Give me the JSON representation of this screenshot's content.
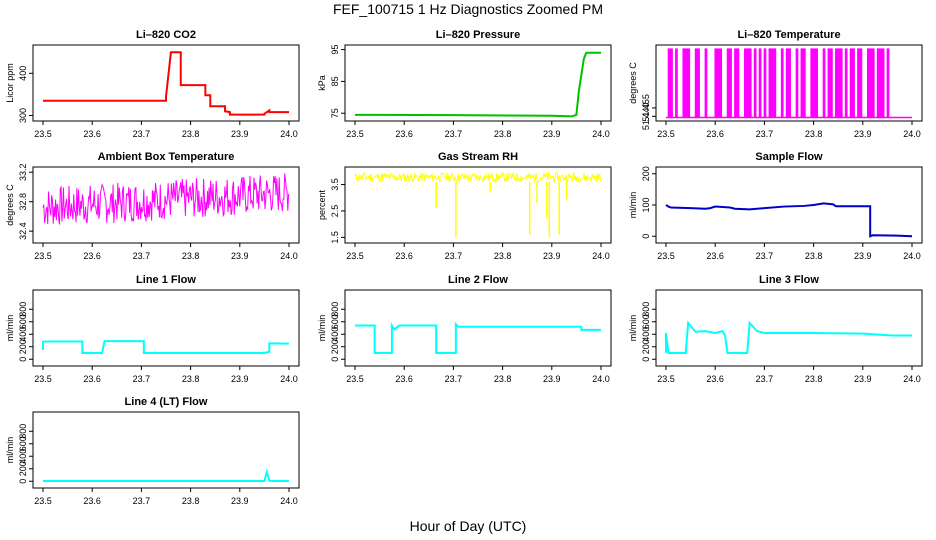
{
  "title": "FEF_100715  1 Hz Diagnostics Zoomed PM",
  "xlabel": "Hour of Day (UTC)",
  "chart_data": [
    {
      "type": "line",
      "title": "Li–820 CO2",
      "ylabel": "Licor ppm",
      "color": "#ff0000",
      "xlim": [
        23.5,
        24.0
      ],
      "ylim": [
        294,
        460
      ],
      "xticks": [
        "23.5",
        "23.6",
        "23.7",
        "23.8",
        "23.9",
        "24.0"
      ],
      "yticks": [
        "300",
        "400"
      ],
      "series": [
        {
          "x": [
            23.5,
            23.75,
            23.75,
            23.76,
            23.77,
            23.78,
            23.78,
            23.83,
            23.83,
            23.84,
            23.84,
            23.87,
            23.87,
            23.88,
            23.88,
            23.95,
            23.95,
            23.96,
            23.96,
            24.0
          ],
          "y": [
            335,
            335,
            345,
            450,
            450,
            450,
            372,
            372,
            348,
            348,
            322,
            322,
            310,
            308,
            302,
            302,
            304,
            312,
            308,
            308
          ]
        }
      ]
    },
    {
      "type": "line",
      "title": "Li–820 Pressure",
      "ylabel": "kPa",
      "color": "#00c000",
      "xlim": [
        23.5,
        24.0
      ],
      "ylim": [
        73.5,
        95.5
      ],
      "xticks": [
        "23.5",
        "23.6",
        "23.7",
        "23.8",
        "23.9",
        "24.0"
      ],
      "yticks": [
        "75",
        "85",
        "95"
      ],
      "series": [
        {
          "x": [
            23.5,
            23.7,
            23.9,
            23.94,
            23.95,
            23.955,
            23.96,
            23.965,
            23.97,
            24.0
          ],
          "y": [
            74.5,
            74.4,
            74.2,
            74.0,
            74.5,
            82,
            87,
            92,
            94,
            94
          ]
        }
      ]
    },
    {
      "type": "line",
      "title": "Li–820 Temperature",
      "ylabel": "degrees C",
      "color": "#ff00ff",
      "xlim": [
        23.5,
        24.0
      ],
      "ylim": [
        51.437,
        51.562
      ],
      "xticks": [
        "23.5",
        "23.6",
        "23.7",
        "23.8",
        "23.9",
        "24.0"
      ],
      "yticks": [
        "51.440",
        "51.455"
      ],
      "switch_x": [
        23.505,
        23.51,
        23.52,
        23.535,
        23.54,
        23.545,
        23.56,
        23.565,
        23.58,
        23.6,
        23.605,
        23.61,
        23.625,
        23.63,
        23.64,
        23.645,
        23.66,
        23.665,
        23.67,
        23.68,
        23.69,
        23.7,
        23.71,
        23.715,
        23.72,
        23.735,
        23.745,
        23.75,
        23.765,
        23.775,
        23.78,
        23.795,
        23.8,
        23.805,
        23.82,
        23.83,
        23.835,
        23.845,
        23.85,
        23.855,
        23.865,
        23.875,
        23.88,
        23.89,
        23.895,
        23.91,
        23.915,
        23.92,
        23.93,
        23.935,
        23.94,
        23.95
      ],
      "low_value": 51.438,
      "high_value": 51.56
    },
    {
      "type": "line",
      "title": "Ambient Box Temperature",
      "ylabel": "degrees C",
      "color": "#ff00ff",
      "xlim": [
        23.5,
        24.0
      ],
      "ylim": [
        32.28,
        33.23
      ],
      "xticks": [
        "23.5",
        "23.6",
        "23.7",
        "23.8",
        "23.9",
        "24.0"
      ],
      "yticks": [
        "32.4",
        "32.8",
        "33.2"
      ],
      "noise": {
        "seed": 7,
        "start": [
          32.45,
          33.0
        ],
        "end": [
          32.65,
          33.2
        ],
        "step": 0.0016
      }
    },
    {
      "type": "line",
      "title": "Gas Stream RH",
      "ylabel": "percent",
      "color": "#ffff00",
      "xlim": [
        23.5,
        24.0
      ],
      "ylim": [
        1.4,
        4.05
      ],
      "xticks": [
        "23.5",
        "23.6",
        "23.7",
        "23.8",
        "23.9",
        "24.0"
      ],
      "yticks": [
        "1.5",
        "2.5",
        "3.5"
      ],
      "noise": {
        "seed": 11,
        "start": [
          3.6,
          3.95
        ],
        "end": [
          3.6,
          3.95
        ],
        "step": 0.0016
      },
      "dips": [
        {
          "x": 23.665,
          "y": 2.6
        },
        {
          "x": 23.705,
          "y": 1.5
        },
        {
          "x": 23.775,
          "y": 3.2
        },
        {
          "x": 23.855,
          "y": 1.6
        },
        {
          "x": 23.87,
          "y": 2.8
        },
        {
          "x": 23.89,
          "y": 2.2
        },
        {
          "x": 23.895,
          "y": 1.5
        },
        {
          "x": 23.915,
          "y": 1.6
        },
        {
          "x": 23.93,
          "y": 2.9
        }
      ]
    },
    {
      "type": "line",
      "title": "Sample Flow",
      "ylabel": "ml/min",
      "color": "#0000c8",
      "xlim": [
        23.5,
        24.0
      ],
      "ylim": [
        -12,
        212
      ],
      "xticks": [
        "23.5",
        "23.6",
        "23.7",
        "23.8",
        "23.9",
        "24.0"
      ],
      "yticks": [
        "0",
        "100",
        "200"
      ],
      "series": [
        {
          "x": [
            23.5,
            23.505,
            23.51,
            23.55,
            23.58,
            23.59,
            23.6,
            23.63,
            23.64,
            23.67,
            23.7,
            23.74,
            23.78,
            23.8,
            23.82,
            23.84,
            23.845,
            23.9,
            23.915,
            23.915,
            23.92,
            23.97,
            24.0
          ],
          "y": [
            100,
            95,
            92,
            90,
            88,
            90,
            95,
            92,
            88,
            86,
            90,
            95,
            97,
            100,
            105,
            102,
            96,
            96,
            96,
            0,
            3,
            2,
            0
          ]
        }
      ]
    },
    {
      "type": "line",
      "title": "Line 1 Flow",
      "ylabel": "ml/min",
      "color": "#00ffff",
      "xlim": [
        23.5,
        24.0
      ],
      "ylim": [
        -60,
        1060
      ],
      "xticks": [
        "23.5",
        "23.6",
        "23.7",
        "23.8",
        "23.9",
        "24.0"
      ],
      "yticks": [
        "0",
        "200",
        "400",
        "600",
        "800"
      ],
      "series": [
        {
          "x": [
            23.5,
            23.5,
            23.505,
            23.58,
            23.58,
            23.62,
            23.625,
            23.705,
            23.705,
            23.95,
            23.96,
            23.96,
            24.0
          ],
          "y": [
            150,
            280,
            285,
            285,
            100,
            100,
            290,
            290,
            100,
            100,
            120,
            255,
            250
          ]
        }
      ]
    },
    {
      "type": "line",
      "title": "Line 2 Flow",
      "ylabel": "ml/min",
      "color": "#00ffff",
      "xlim": [
        23.5,
        24.0
      ],
      "ylim": [
        -60,
        1060
      ],
      "xticks": [
        "23.5",
        "23.6",
        "23.7",
        "23.8",
        "23.9",
        "24.0"
      ],
      "yticks": [
        "0",
        "200",
        "400",
        "600",
        "800"
      ],
      "series": [
        {
          "x": [
            23.5,
            23.54,
            23.54,
            23.575,
            23.575,
            23.58,
            23.59,
            23.665,
            23.665,
            23.705,
            23.705,
            23.71,
            23.96,
            23.96,
            24.0
          ],
          "y": [
            540,
            540,
            100,
            100,
            540,
            480,
            540,
            540,
            100,
            100,
            560,
            520,
            520,
            470,
            470
          ]
        }
      ]
    },
    {
      "type": "line",
      "title": "Line 3 Flow",
      "ylabel": "ml/min",
      "color": "#00ffff",
      "xlim": [
        23.5,
        24.0
      ],
      "ylim": [
        -60,
        1060
      ],
      "xticks": [
        "23.5",
        "23.6",
        "23.7",
        "23.8",
        "23.9",
        "24.0"
      ],
      "yticks": [
        "0",
        "200",
        "400",
        "600",
        "800"
      ],
      "series": [
        {
          "x": [
            23.5,
            23.5,
            23.505,
            23.54,
            23.545,
            23.56,
            23.58,
            23.6,
            23.615,
            23.62,
            23.625,
            23.665,
            23.67,
            23.685,
            23.7,
            23.8,
            23.9,
            23.96,
            24.0
          ],
          "y": [
            100,
            420,
            100,
            100,
            580,
            440,
            450,
            420,
            450,
            380,
            100,
            100,
            580,
            450,
            420,
            420,
            410,
            380,
            380
          ]
        }
      ]
    },
    {
      "type": "line",
      "title": "Line 4 (LT) Flow",
      "ylabel": "ml/min",
      "color": "#00ffff",
      "xlim": [
        23.5,
        24.0
      ],
      "ylim": [
        -60,
        1060
      ],
      "xticks": [
        "23.5",
        "23.6",
        "23.7",
        "23.8",
        "23.9",
        "24.0"
      ],
      "yticks": [
        "0",
        "200",
        "400",
        "600",
        "800"
      ],
      "series": [
        {
          "x": [
            23.5,
            23.95,
            23.955,
            23.96,
            23.965,
            24.0
          ],
          "y": [
            5,
            5,
            150,
            10,
            5,
            5
          ]
        }
      ]
    }
  ]
}
